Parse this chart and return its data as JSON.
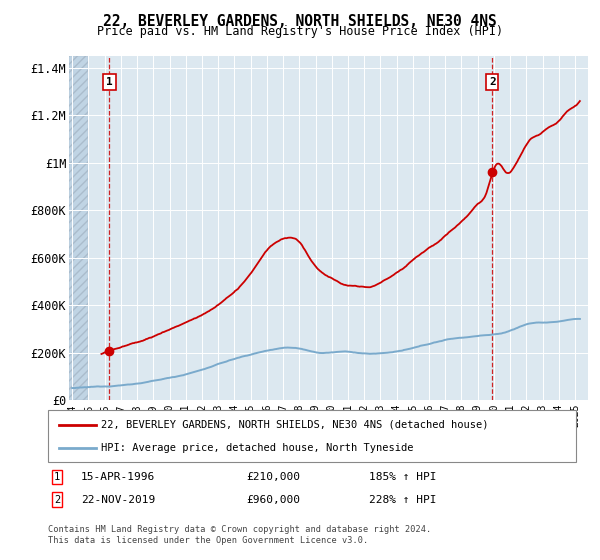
{
  "title": "22, BEVERLEY GARDENS, NORTH SHIELDS, NE30 4NS",
  "subtitle": "Price paid vs. HM Land Registry's House Price Index (HPI)",
  "ylim": [
    0,
    1450000
  ],
  "yticks": [
    0,
    200000,
    400000,
    600000,
    800000,
    1000000,
    1200000,
    1400000
  ],
  "ytick_labels": [
    "£0",
    "£200K",
    "£400K",
    "£600K",
    "£800K",
    "£1M",
    "£1.2M",
    "£1.4M"
  ],
  "xlim_start": 1993.8,
  "xlim_end": 2025.8,
  "xlabel_years": [
    1994,
    1995,
    1996,
    1997,
    1998,
    1999,
    2000,
    2001,
    2002,
    2003,
    2004,
    2005,
    2006,
    2007,
    2008,
    2009,
    2010,
    2011,
    2012,
    2013,
    2014,
    2015,
    2016,
    2017,
    2018,
    2019,
    2020,
    2021,
    2022,
    2023,
    2024,
    2025
  ],
  "purchase1_x": 1996.29,
  "purchase1_y": 210000,
  "purchase2_x": 2019.9,
  "purchase2_y": 960000,
  "legend_line1": "22, BEVERLEY GARDENS, NORTH SHIELDS, NE30 4NS (detached house)",
  "legend_line2": "HPI: Average price, detached house, North Tyneside",
  "annotation1_label": "1",
  "annotation1_date": "15-APR-1996",
  "annotation1_price": "£210,000",
  "annotation1_hpi": "185% ↑ HPI",
  "annotation2_label": "2",
  "annotation2_date": "22-NOV-2019",
  "annotation2_price": "£960,000",
  "annotation2_hpi": "228% ↑ HPI",
  "copyright": "Contains HM Land Registry data © Crown copyright and database right 2024.\nThis data is licensed under the Open Government Licence v3.0.",
  "line_color_red": "#cc0000",
  "line_color_blue": "#7aaacc",
  "background_plot": "#dce8f0",
  "grid_color": "#ffffff",
  "vline_color": "#cc0000",
  "hatch_color": "#c0d4e4"
}
